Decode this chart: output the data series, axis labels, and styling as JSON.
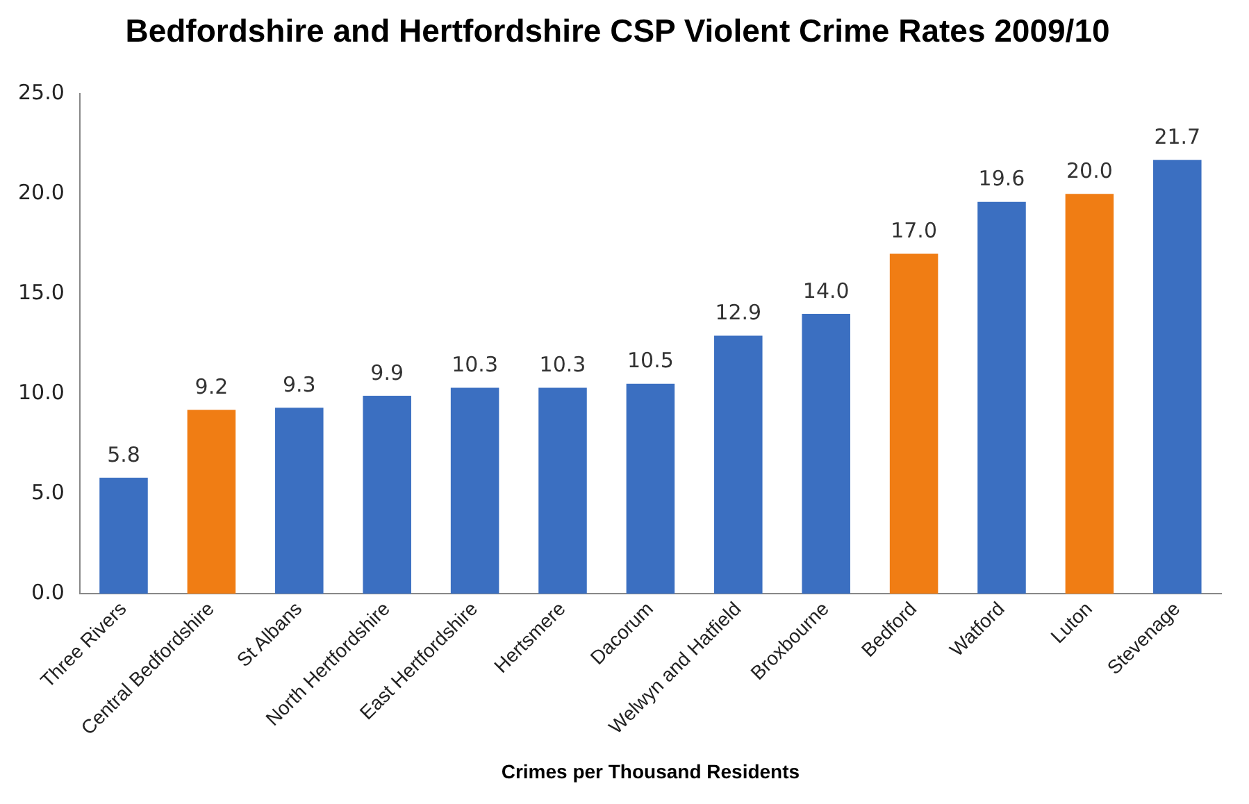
{
  "chart_data": {
    "type": "bar",
    "title": "Bedfordshire and Hertfordshire CSP Violent Crime Rates 2009/10",
    "xlabel": "Crimes per Thousand Residents",
    "categories": [
      "Three Rivers",
      "Central Bedfordshire",
      "St Albans",
      "North Hertfordshire",
      "East Hertfordshire",
      "Hertsmere",
      "Dacorum",
      "Welwyn and Hatfield",
      "Broxbourne",
      "Bedford",
      "Watford",
      "Luton",
      "Stevenage"
    ],
    "values": [
      5.8,
      9.2,
      9.3,
      9.9,
      10.3,
      10.3,
      10.5,
      12.9,
      14.0,
      17.0,
      19.6,
      20.0,
      21.7
    ],
    "value_labels": [
      "5.8",
      "9.2",
      "9.3",
      "9.9",
      "10.3",
      "10.3",
      "10.5",
      "12.9",
      "14.0",
      "17.0",
      "19.6",
      "20.0",
      "21.7"
    ],
    "colors": [
      "#3b6fc1",
      "#f07d14",
      "#3b6fc1",
      "#3b6fc1",
      "#3b6fc1",
      "#3b6fc1",
      "#3b6fc1",
      "#3b6fc1",
      "#3b6fc1",
      "#f07d14",
      "#3b6fc1",
      "#f07d14",
      "#3b6fc1"
    ],
    "ylim": [
      0,
      25
    ],
    "yticks": [
      {
        "value": 0,
        "label": "0.0"
      },
      {
        "value": 5,
        "label": "5.0"
      },
      {
        "value": 10,
        "label": "10.0"
      },
      {
        "value": 15,
        "label": "15.0"
      },
      {
        "value": 20,
        "label": "20.0"
      },
      {
        "value": 25,
        "label": "25.0"
      }
    ],
    "grid": false,
    "legend": false
  }
}
